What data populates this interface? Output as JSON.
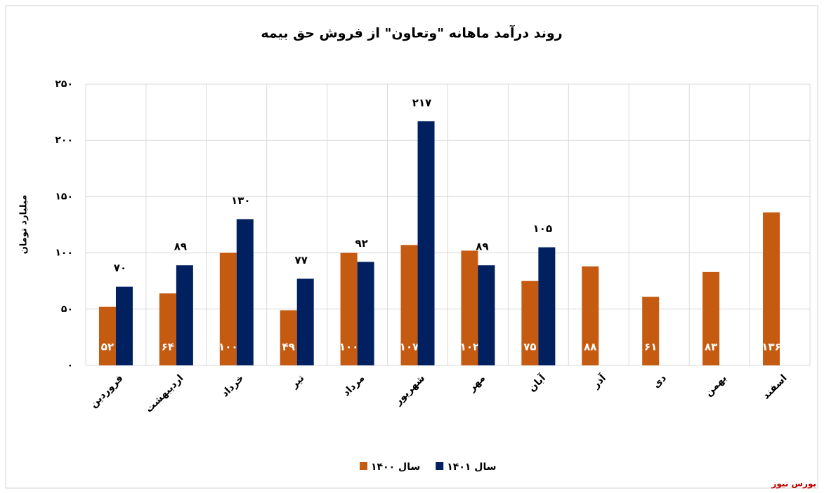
{
  "chart_data": {
    "type": "bar",
    "title": "روند درآمد ماهانه \"وتعاون\" از فروش حق بیمه",
    "y_label": "میلیارد تومان",
    "source": "بورس نیوز",
    "categories": [
      "فروردین",
      "اردیبهشت",
      "خرداد",
      "تیر",
      "مرداد",
      "شهریور",
      "مهر",
      "آبان",
      "آذر",
      "دی",
      "بهمن",
      "اسفند"
    ],
    "series": [
      {
        "name": "سال ۱۴۰۰",
        "color": "#c55a11",
        "values": [
          52,
          64,
          100,
          49,
          100,
          107,
          102,
          75,
          88,
          61,
          83,
          136
        ],
        "value_labels": [
          "۵۲",
          "۶۴",
          "۱۰۰",
          "۴۹",
          "۱۰۰",
          "۱۰۷",
          "۱۰۲",
          "۷۵",
          "۸۸",
          "۶۱",
          "۸۳",
          "۱۳۶"
        ]
      },
      {
        "name": "سال ۱۴۰۱",
        "color": "#002060",
        "values": [
          70,
          89,
          130,
          77,
          92,
          217,
          89,
          105,
          null,
          null,
          null,
          null
        ],
        "value_labels": [
          "۷۰",
          "۸۹",
          "۱۳۰",
          "۷۷",
          "۹۲",
          "۲۱۷",
          "۸۹",
          "۱۰۵",
          null,
          null,
          null,
          null
        ]
      }
    ],
    "ylim": [
      0,
      250
    ],
    "yticks": [
      {
        "value": 0,
        "label": "۰"
      },
      {
        "value": 50,
        "label": "۵۰"
      },
      {
        "value": 100,
        "label": "۱۰۰"
      },
      {
        "value": 150,
        "label": "۱۵۰"
      },
      {
        "value": 200,
        "label": "۲۰۰"
      },
      {
        "value": 250,
        "label": "۲۵۰"
      }
    ],
    "grid": true
  }
}
